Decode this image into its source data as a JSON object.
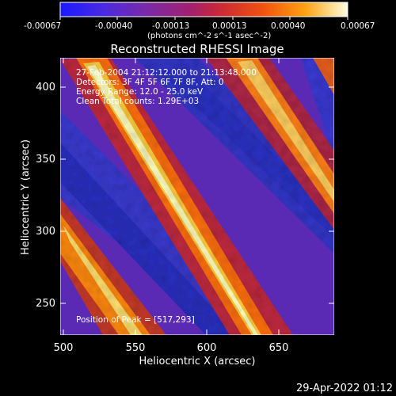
{
  "colorbar": {
    "ticks": [
      "-0.00067",
      "-0.00040",
      "-0.00013",
      "0.00013",
      "0.00040",
      "0.00067"
    ],
    "unit_label": "(photons cm^-2 s^-1 asec^-2)",
    "palette": [
      "#1a1aff",
      "#5a2ad8",
      "#8a1e9e",
      "#b0205a",
      "#dd3a1a",
      "#ff7a00",
      "#ffc020",
      "#ffffd0"
    ]
  },
  "title": "Reconstructed RHESSI Image",
  "overlay": {
    "time_line": "27-Feb-2004 21:12:12.000 to 21:13:48.000",
    "detectors_line": "Detectors: 3F 4F 5F 6F 7F 8F, Att: 0",
    "energy_line": "Energy Range: 12.0 - 25.0 keV",
    "clean_line": "Clean Total counts: 1.29E+03",
    "peak_line": "Position of Peak = [517,293]"
  },
  "axes": {
    "xlabel": "Heliocentric X (arcsec)",
    "ylabel": "Heliocentric Y (arcsec)",
    "x_ticks": [
      "500",
      "550",
      "600",
      "650"
    ],
    "y_ticks": [
      "400",
      "350",
      "300",
      "250"
    ]
  },
  "footer_timestamp": "29-Apr-2022 01:12"
}
